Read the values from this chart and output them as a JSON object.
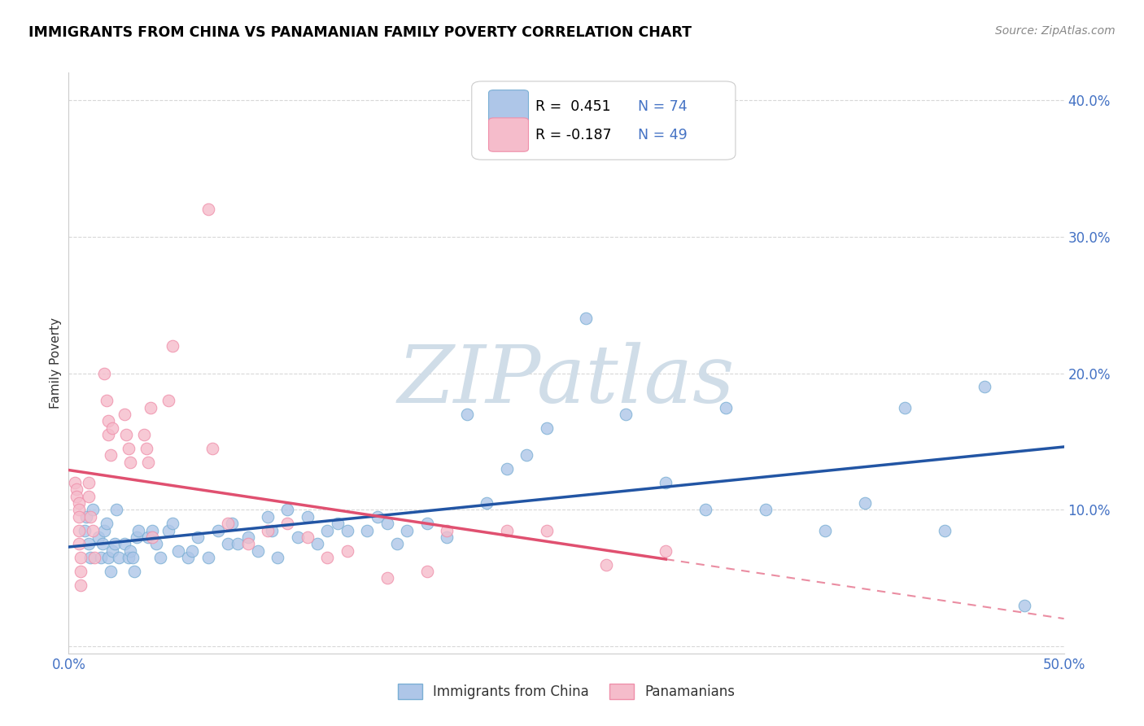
{
  "title": "IMMIGRANTS FROM CHINA VS PANAMANIAN FAMILY POVERTY CORRELATION CHART",
  "source": "Source: ZipAtlas.com",
  "ylabel": "Family Poverty",
  "xlim": [
    0.0,
    0.5
  ],
  "ylim": [
    -0.005,
    0.42
  ],
  "yticks": [
    0.0,
    0.1,
    0.2,
    0.3,
    0.4
  ],
  "ytick_labels": [
    "",
    "10.0%",
    "20.0%",
    "30.0%",
    "40.0%"
  ],
  "xtick_positions": [
    0.0,
    0.1,
    0.2,
    0.3,
    0.4,
    0.5
  ],
  "xtick_labels": [
    "0.0%",
    "",
    "",
    "",
    "",
    "50.0%"
  ],
  "background_color": "#ffffff",
  "grid_color": "#d8d8d8",
  "watermark": "ZIPatlas",
  "china_color": "#aec6e8",
  "china_edge_color": "#7aafd4",
  "panama_color": "#f5bccb",
  "panama_edge_color": "#ef8faa",
  "china_line_color": "#2255a4",
  "panama_line_color": "#e05070",
  "china_R": 0.451,
  "china_N": 74,
  "panama_R": -0.187,
  "panama_N": 49,
  "china_x": [
    0.008,
    0.009,
    0.01,
    0.011,
    0.012,
    0.015,
    0.016,
    0.017,
    0.018,
    0.019,
    0.02,
    0.021,
    0.022,
    0.023,
    0.024,
    0.025,
    0.028,
    0.03,
    0.031,
    0.032,
    0.033,
    0.034,
    0.035,
    0.04,
    0.042,
    0.044,
    0.046,
    0.05,
    0.052,
    0.055,
    0.06,
    0.062,
    0.065,
    0.07,
    0.075,
    0.08,
    0.082,
    0.085,
    0.09,
    0.095,
    0.1,
    0.102,
    0.105,
    0.11,
    0.115,
    0.12,
    0.125,
    0.13,
    0.135,
    0.14,
    0.15,
    0.155,
    0.16,
    0.165,
    0.17,
    0.18,
    0.19,
    0.2,
    0.21,
    0.22,
    0.23,
    0.24,
    0.26,
    0.28,
    0.3,
    0.32,
    0.33,
    0.35,
    0.38,
    0.4,
    0.42,
    0.44,
    0.46,
    0.48
  ],
  "china_y": [
    0.085,
    0.095,
    0.075,
    0.065,
    0.1,
    0.08,
    0.065,
    0.075,
    0.085,
    0.09,
    0.065,
    0.055,
    0.07,
    0.075,
    0.1,
    0.065,
    0.075,
    0.065,
    0.07,
    0.065,
    0.055,
    0.08,
    0.085,
    0.08,
    0.085,
    0.075,
    0.065,
    0.085,
    0.09,
    0.07,
    0.065,
    0.07,
    0.08,
    0.065,
    0.085,
    0.075,
    0.09,
    0.075,
    0.08,
    0.07,
    0.095,
    0.085,
    0.065,
    0.1,
    0.08,
    0.095,
    0.075,
    0.085,
    0.09,
    0.085,
    0.085,
    0.095,
    0.09,
    0.075,
    0.085,
    0.09,
    0.08,
    0.17,
    0.105,
    0.13,
    0.14,
    0.16,
    0.24,
    0.17,
    0.12,
    0.1,
    0.175,
    0.1,
    0.085,
    0.105,
    0.175,
    0.085,
    0.19,
    0.03
  ],
  "panama_x": [
    0.003,
    0.004,
    0.004,
    0.005,
    0.005,
    0.005,
    0.005,
    0.005,
    0.006,
    0.006,
    0.006,
    0.01,
    0.01,
    0.011,
    0.012,
    0.013,
    0.018,
    0.019,
    0.02,
    0.02,
    0.021,
    0.022,
    0.028,
    0.029,
    0.03,
    0.031,
    0.038,
    0.039,
    0.04,
    0.041,
    0.042,
    0.05,
    0.052,
    0.07,
    0.072,
    0.08,
    0.09,
    0.1,
    0.11,
    0.12,
    0.13,
    0.14,
    0.16,
    0.18,
    0.19,
    0.22,
    0.24,
    0.27,
    0.3
  ],
  "panama_y": [
    0.12,
    0.115,
    0.11,
    0.105,
    0.1,
    0.095,
    0.085,
    0.075,
    0.065,
    0.055,
    0.045,
    0.12,
    0.11,
    0.095,
    0.085,
    0.065,
    0.2,
    0.18,
    0.165,
    0.155,
    0.14,
    0.16,
    0.17,
    0.155,
    0.145,
    0.135,
    0.155,
    0.145,
    0.135,
    0.175,
    0.08,
    0.18,
    0.22,
    0.32,
    0.145,
    0.09,
    0.075,
    0.085,
    0.09,
    0.08,
    0.065,
    0.07,
    0.05,
    0.055,
    0.085,
    0.085,
    0.085,
    0.06,
    0.07
  ]
}
